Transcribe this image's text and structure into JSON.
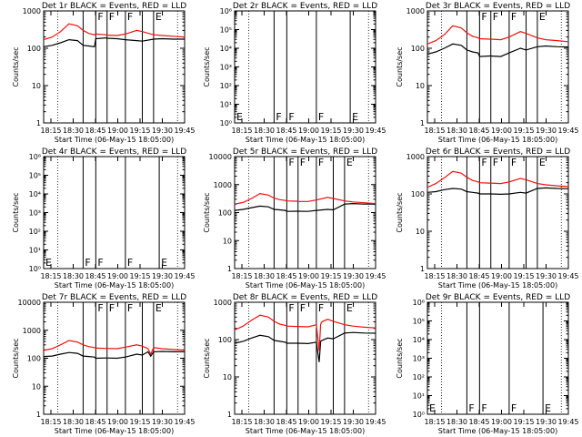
{
  "colors": {
    "events": "#000000",
    "lld": "#ee1111",
    "axis": "#000000"
  },
  "common": {
    "xticks": [
      "18:15",
      "18:30",
      "18:45",
      "19:00",
      "19:15",
      "19:30",
      "19:45"
    ],
    "xlabel": "Start Time (06-May-15 18:05:00)",
    "ylabel": "Counts/sec",
    "log_y": true
  },
  "chart_data": [
    {
      "type": "line",
      "title": "Det 1r BLACK = Events, RED = LLD",
      "ylim": [
        1,
        1000
      ],
      "yticks": [
        "1",
        "10",
        "100",
        "1000"
      ],
      "empty": false,
      "flags": [
        {
          "t": 0.28,
          "label": ""
        },
        {
          "t": 0.37,
          "label": "F"
        },
        {
          "t": 0.45,
          "label": "F"
        },
        {
          "t": 0.58,
          "label": "F"
        },
        {
          "t": 0.7,
          "label": ""
        },
        {
          "t": 0.78,
          "label": "E"
        }
      ],
      "series": [
        {
          "name": "Events",
          "x": [
            0,
            0.06,
            0.12,
            0.18,
            0.24,
            0.28,
            0.32,
            0.36,
            0.37,
            0.44,
            0.45,
            0.52,
            0.58,
            0.66,
            0.7,
            0.78,
            0.84,
            0.92,
            1
          ],
          "y": [
            110,
            120,
            140,
            170,
            160,
            120,
            115,
            110,
            180,
            190,
            185,
            180,
            170,
            160,
            155,
            175,
            180,
            175,
            175
          ]
        },
        {
          "name": "LLD",
          "x": [
            0,
            0.06,
            0.12,
            0.18,
            0.24,
            0.28,
            0.32,
            0.36,
            0.37,
            0.44,
            0.45,
            0.52,
            0.58,
            0.66,
            0.7,
            0.78,
            0.84,
            0.92,
            1
          ],
          "y": [
            170,
            200,
            280,
            450,
            400,
            300,
            250,
            230,
            240,
            230,
            225,
            220,
            240,
            300,
            280,
            230,
            220,
            210,
            200
          ]
        }
      ]
    },
    {
      "type": "line",
      "title": "Det 2r BLACK = Events, RED = LLD",
      "ylim": [
        1,
        1000000
      ],
      "yticks": [
        "10⁰",
        "10¹",
        "10²",
        "10³",
        "10⁴",
        "10⁵",
        "10⁶"
      ],
      "empty": true,
      "flags": [
        {
          "t": 0.0,
          "label": "E"
        },
        {
          "t": 0.28,
          "label": "F"
        },
        {
          "t": 0.37,
          "label": "F"
        },
        {
          "t": 0.58,
          "label": "F"
        },
        {
          "t": 0.82,
          "label": "E"
        }
      ],
      "series": []
    },
    {
      "type": "line",
      "title": "Det 3r BLACK = Events, RED = LLD",
      "ylim": [
        1,
        1000
      ],
      "yticks": [
        "1",
        "10",
        "100",
        "1000"
      ],
      "empty": false,
      "flags": [
        {
          "t": 0.28,
          "label": ""
        },
        {
          "t": 0.37,
          "label": "F"
        },
        {
          "t": 0.45,
          "label": "F"
        },
        {
          "t": 0.58,
          "label": "F"
        },
        {
          "t": 0.7,
          "label": ""
        },
        {
          "t": 0.78,
          "label": "E"
        }
      ],
      "series": [
        {
          "name": "Events",
          "x": [
            0,
            0.06,
            0.12,
            0.18,
            0.24,
            0.28,
            0.32,
            0.36,
            0.37,
            0.44,
            0.45,
            0.52,
            0.58,
            0.66,
            0.7,
            0.78,
            0.84,
            0.92,
            1
          ],
          "y": [
            70,
            80,
            100,
            130,
            120,
            90,
            80,
            75,
            60,
            62,
            62,
            60,
            75,
            100,
            90,
            110,
            115,
            110,
            108
          ]
        },
        {
          "name": "LLD",
          "x": [
            0,
            0.06,
            0.12,
            0.18,
            0.24,
            0.28,
            0.32,
            0.36,
            0.37,
            0.44,
            0.45,
            0.52,
            0.58,
            0.66,
            0.7,
            0.78,
            0.84,
            0.92,
            1
          ],
          "y": [
            130,
            160,
            230,
            400,
            350,
            260,
            210,
            190,
            180,
            175,
            175,
            170,
            200,
            280,
            250,
            190,
            170,
            160,
            150
          ]
        }
      ]
    },
    {
      "type": "line",
      "title": "Det 4r BLACK = Events, RED = LLD",
      "ylim": [
        1,
        1000000
      ],
      "yticks": [
        "10⁰",
        "10¹",
        "10²",
        "10³",
        "10⁴",
        "10⁵",
        "10⁶"
      ],
      "empty": true,
      "flags": [
        {
          "t": 0.0,
          "label": "E"
        },
        {
          "t": 0.28,
          "label": "F"
        },
        {
          "t": 0.37,
          "label": "F"
        },
        {
          "t": 0.58,
          "label": "F"
        },
        {
          "t": 0.82,
          "label": "E"
        }
      ],
      "series": []
    },
    {
      "type": "line",
      "title": "Det 5r BLACK = Events, RED = LLD",
      "ylim": [
        1,
        10000
      ],
      "yticks": [
        "1",
        "10",
        "100",
        "1000",
        "10000"
      ],
      "empty": false,
      "flags": [
        {
          "t": 0.28,
          "label": ""
        },
        {
          "t": 0.37,
          "label": "F"
        },
        {
          "t": 0.45,
          "label": "F"
        },
        {
          "t": 0.58,
          "label": "F"
        },
        {
          "t": 0.7,
          "label": ""
        },
        {
          "t": 0.78,
          "label": "E"
        }
      ],
      "series": [
        {
          "name": "Events",
          "x": [
            0,
            0.06,
            0.12,
            0.18,
            0.24,
            0.28,
            0.32,
            0.36,
            0.37,
            0.44,
            0.45,
            0.52,
            0.58,
            0.66,
            0.7,
            0.78,
            0.84,
            0.92,
            1
          ],
          "y": [
            120,
            130,
            150,
            170,
            160,
            130,
            125,
            120,
            110,
            112,
            112,
            110,
            120,
            130,
            125,
            200,
            210,
            200,
            200
          ]
        },
        {
          "name": "LLD",
          "x": [
            0,
            0.06,
            0.12,
            0.18,
            0.24,
            0.28,
            0.32,
            0.36,
            0.37,
            0.44,
            0.45,
            0.52,
            0.58,
            0.66,
            0.7,
            0.78,
            0.84,
            0.92,
            1
          ],
          "y": [
            200,
            230,
            320,
            480,
            420,
            330,
            290,
            270,
            260,
            255,
            250,
            250,
            280,
            350,
            320,
            260,
            240,
            225,
            210
          ]
        }
      ]
    },
    {
      "type": "line",
      "title": "Det 6r BLACK = Events, RED = LLD",
      "ylim": [
        1,
        1000
      ],
      "yticks": [
        "1",
        "10",
        "100",
        "1000"
      ],
      "empty": false,
      "flags": [
        {
          "t": 0.28,
          "label": ""
        },
        {
          "t": 0.37,
          "label": "F"
        },
        {
          "t": 0.45,
          "label": "F"
        },
        {
          "t": 0.58,
          "label": "F"
        },
        {
          "t": 0.7,
          "label": ""
        },
        {
          "t": 0.78,
          "label": "E"
        }
      ],
      "series": [
        {
          "name": "Events",
          "x": [
            0,
            0.06,
            0.12,
            0.18,
            0.24,
            0.28,
            0.32,
            0.36,
            0.37,
            0.44,
            0.45,
            0.52,
            0.58,
            0.66,
            0.7,
            0.78,
            0.84,
            0.92,
            1
          ],
          "y": [
            110,
            115,
            130,
            140,
            135,
            115,
            110,
            105,
            100,
            100,
            100,
            98,
            100,
            110,
            105,
            140,
            145,
            140,
            138
          ]
        },
        {
          "name": "LLD",
          "x": [
            0,
            0.06,
            0.12,
            0.18,
            0.24,
            0.28,
            0.32,
            0.36,
            0.37,
            0.44,
            0.45,
            0.52,
            0.58,
            0.66,
            0.7,
            0.78,
            0.84,
            0.92,
            1
          ],
          "y": [
            150,
            190,
            270,
            400,
            360,
            280,
            230,
            210,
            200,
            195,
            195,
            190,
            210,
            260,
            240,
            190,
            175,
            165,
            158
          ]
        }
      ]
    },
    {
      "type": "line",
      "title": "Det 7r BLACK = Events, RED = LLD",
      "ylim": [
        1,
        10000
      ],
      "yticks": [
        "1",
        "10",
        "100",
        "1000",
        "10000"
      ],
      "empty": false,
      "flags": [
        {
          "t": 0.28,
          "label": ""
        },
        {
          "t": 0.37,
          "label": "F"
        },
        {
          "t": 0.45,
          "label": "F"
        },
        {
          "t": 0.58,
          "label": "F"
        },
        {
          "t": 0.7,
          "label": ""
        },
        {
          "t": 0.78,
          "label": "E"
        }
      ],
      "series": [
        {
          "name": "Events",
          "x": [
            0,
            0.06,
            0.12,
            0.18,
            0.24,
            0.28,
            0.32,
            0.36,
            0.37,
            0.44,
            0.45,
            0.52,
            0.58,
            0.66,
            0.7,
            0.74,
            0.76,
            0.78,
            0.84,
            0.92,
            1
          ],
          "y": [
            115,
            120,
            140,
            160,
            150,
            120,
            115,
            110,
            100,
            102,
            102,
            100,
            110,
            140,
            130,
            170,
            120,
            170,
            175,
            170,
            170
          ]
        },
        {
          "name": "LLD",
          "x": [
            0,
            0.06,
            0.12,
            0.18,
            0.24,
            0.28,
            0.32,
            0.36,
            0.37,
            0.44,
            0.45,
            0.52,
            0.58,
            0.66,
            0.7,
            0.74,
            0.76,
            0.78,
            0.84,
            0.92,
            1
          ],
          "y": [
            190,
            220,
            300,
            430,
            380,
            300,
            260,
            240,
            230,
            225,
            225,
            220,
            250,
            300,
            270,
            220,
            140,
            240,
            220,
            205,
            195
          ]
        }
      ]
    },
    {
      "type": "line",
      "title": "Det 8r BLACK = Events, RED = LLD",
      "ylim": [
        1,
        1000
      ],
      "yticks": [
        "1",
        "10",
        "100",
        "1000"
      ],
      "empty": false,
      "flags": [
        {
          "t": 0.28,
          "label": ""
        },
        {
          "t": 0.37,
          "label": "F"
        },
        {
          "t": 0.45,
          "label": "F"
        },
        {
          "t": 0.58,
          "label": "F"
        },
        {
          "t": 0.7,
          "label": ""
        },
        {
          "t": 0.78,
          "label": "E"
        }
      ],
      "series": [
        {
          "name": "Events",
          "x": [
            0,
            0.06,
            0.12,
            0.18,
            0.24,
            0.28,
            0.32,
            0.36,
            0.37,
            0.44,
            0.45,
            0.52,
            0.58,
            0.6,
            0.61,
            0.62,
            0.66,
            0.7,
            0.78,
            0.84,
            0.92,
            1
          ],
          "y": [
            80,
            90,
            110,
            130,
            120,
            95,
            90,
            85,
            80,
            80,
            80,
            78,
            85,
            25,
            90,
            95,
            110,
            105,
            150,
            155,
            150,
            148
          ]
        },
        {
          "name": "LLD",
          "x": [
            0,
            0.06,
            0.12,
            0.18,
            0.24,
            0.28,
            0.32,
            0.36,
            0.37,
            0.44,
            0.45,
            0.52,
            0.58,
            0.6,
            0.61,
            0.62,
            0.66,
            0.7,
            0.78,
            0.84,
            0.92,
            1
          ],
          "y": [
            180,
            230,
            330,
            450,
            400,
            310,
            260,
            240,
            230,
            225,
            225,
            220,
            250,
            50,
            260,
            300,
            350,
            310,
            250,
            230,
            215,
            205
          ]
        }
      ]
    },
    {
      "type": "line",
      "title": "Det 9r BLACK = Events, RED = LLD",
      "ylim": [
        1,
        1000000
      ],
      "yticks": [
        "10⁰",
        "10¹",
        "10²",
        "10³",
        "10⁴",
        "10⁵",
        "10⁶"
      ],
      "empty": true,
      "flags": [
        {
          "t": 0.0,
          "label": "E"
        },
        {
          "t": 0.28,
          "label": "F"
        },
        {
          "t": 0.37,
          "label": "F"
        },
        {
          "t": 0.58,
          "label": "F"
        },
        {
          "t": 0.82,
          "label": "E"
        }
      ],
      "series": []
    }
  ]
}
